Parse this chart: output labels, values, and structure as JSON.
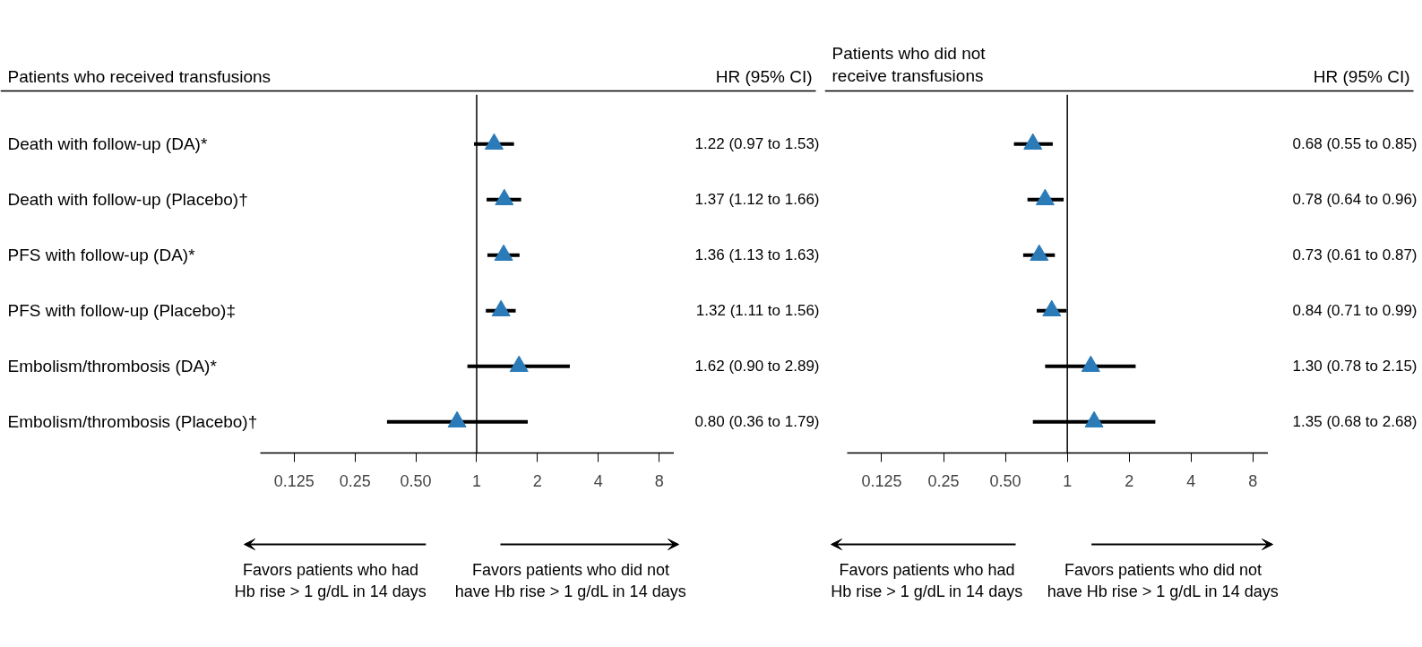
{
  "chart_data": [
    {
      "type": "scatter",
      "orientation": "horizontal",
      "title": "Patients who received transfusions",
      "annotations": [
        "HR (95% CI)",
        "Favors patients who had\nHb rise > 1 g/dL in 14 days",
        "Favors patients who did not\nhave Hb rise > 1 g/dL in 14 days"
      ],
      "categories": [
        "Death with follow-up (DA)*",
        "Death with follow-up (Placebo)†",
        "PFS with follow-up (DA)*",
        "PFS with follow-up (Placebo)‡",
        "Embolism/thrombosis (DA)*",
        "Embolism/thrombosis (Placebo)†"
      ],
      "series": [
        {
          "color": "#2b7bb9",
          "values": [
            1.22,
            1.37,
            1.36,
            1.32,
            1.62,
            0.8
          ],
          "errors": [
            [
              0.97,
              1.53
            ],
            [
              1.12,
              1.66
            ],
            [
              1.13,
              1.63
            ],
            [
              1.11,
              1.56
            ],
            [
              0.9,
              2.89
            ],
            [
              0.36,
              1.79
            ]
          ],
          "value_labels": [
            "1.22 (0.97 to 1.53)",
            "1.37 (1.12 to 1.66)",
            "1.36 (1.13 to 1.63)",
            "1.32 (1.11 to 1.56)",
            "1.62 (0.90 to 2.89)",
            "0.80 (0.36 to 1.79)"
          ]
        }
      ],
      "marker": "triangle",
      "log": "x",
      "xlim": [
        0.085,
        9.5
      ],
      "xticks": [
        0.125,
        0.25,
        {
          "value": 0.5,
          "label": "0.50"
        },
        1,
        2,
        4,
        8
      ],
      "ref_lines": [
        {
          "axis": "x",
          "value": 1
        }
      ],
      "grid": false
    },
    {
      "type": "scatter",
      "orientation": "horizontal",
      "title": "Patients who did not\nreceive transfusions",
      "annotations": [
        "HR (95% CI)",
        "Favors patients who had\nHb rise > 1 g/dL in 14 days",
        "Favors patients who did not\nhave Hb rise > 1 g/dL in 14 days"
      ],
      "categories": [
        null,
        null,
        null,
        null,
        null,
        null
      ],
      "series": [
        {
          "color": "#2b7bb9",
          "values": [
            0.68,
            0.78,
            0.73,
            0.84,
            1.3,
            1.35
          ],
          "errors": [
            [
              0.55,
              0.85
            ],
            [
              0.64,
              0.96
            ],
            [
              0.61,
              0.87
            ],
            [
              0.71,
              0.99
            ],
            [
              0.78,
              2.15
            ],
            [
              0.68,
              2.68
            ]
          ],
          "value_labels": [
            "0.68 (0.55 to 0.85)",
            "0.78 (0.64 to 0.96)",
            "0.73 (0.61 to 0.87)",
            "0.84 (0.71 to 0.99)",
            "1.30 (0.78 to 2.15)",
            "1.35 (0.68 to 2.68)"
          ]
        }
      ],
      "marker": "triangle",
      "log": "x",
      "xlim": [
        0.085,
        9.5
      ],
      "xticks": [
        0.125,
        0.25,
        {
          "value": 0.5,
          "label": "0.50"
        },
        1,
        2,
        4,
        8
      ],
      "ref_lines": [
        {
          "axis": "x",
          "value": 1
        }
      ],
      "grid": false
    }
  ]
}
